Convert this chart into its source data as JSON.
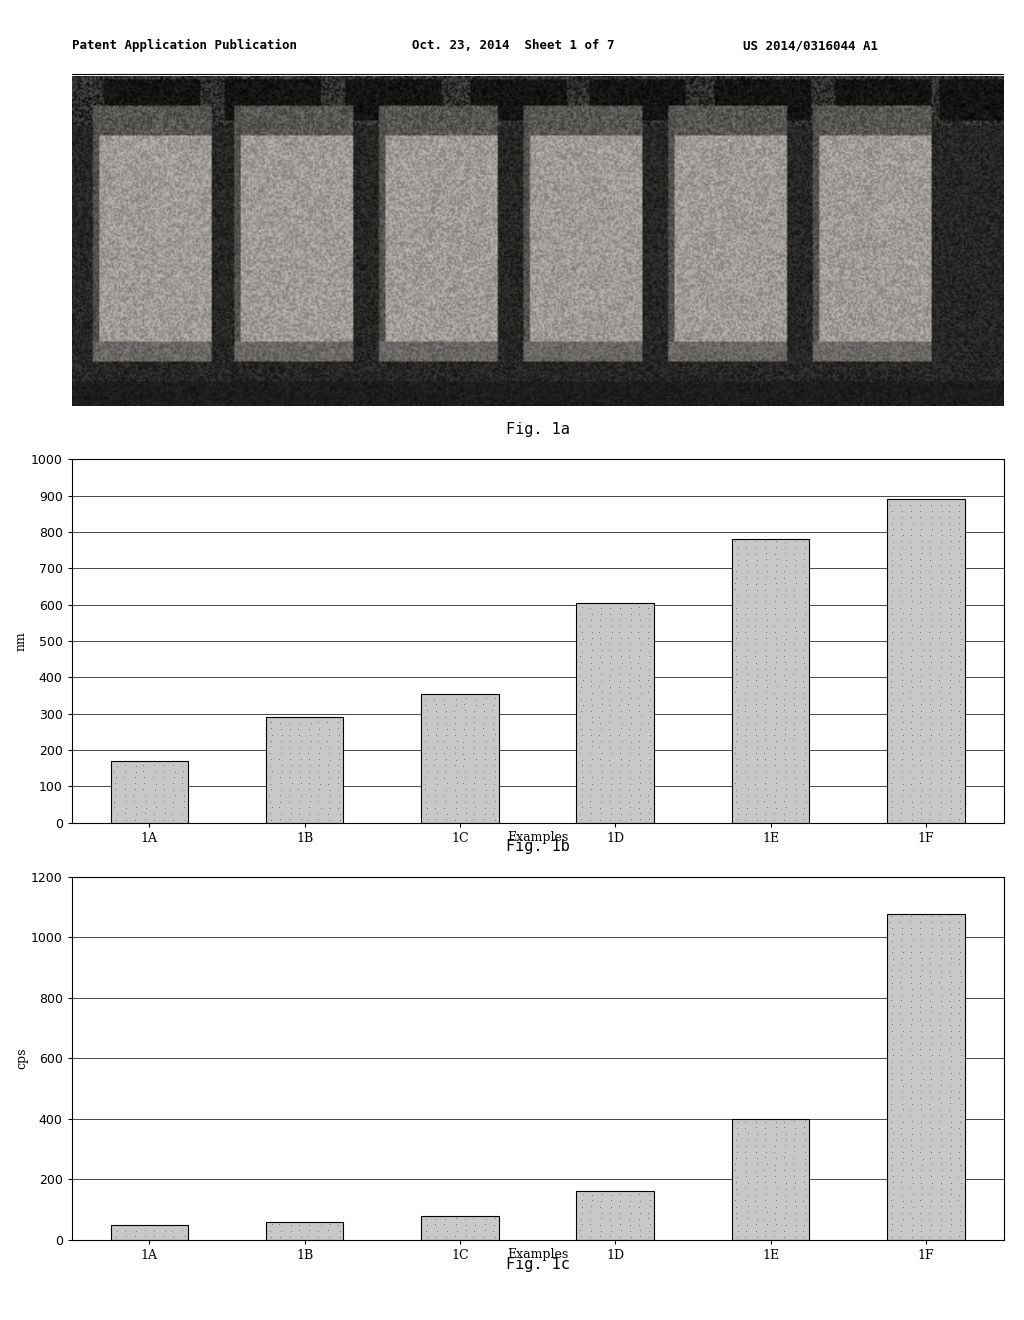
{
  "header_left": "Patent Application Publication",
  "header_mid": "Oct. 23, 2014  Sheet 1 of 7",
  "header_right": "US 2014/0316044 A1",
  "fig1a_label": "Fig. 1a",
  "fig1b_label": "Fig. 1b",
  "fig1c_label": "Fig. 1c",
  "chart1b": {
    "categories": [
      "1A",
      "1B",
      "1C",
      "1D",
      "1E",
      "1F"
    ],
    "values": [
      170,
      290,
      355,
      605,
      780,
      890
    ],
    "ylabel": "nm",
    "xlabel": "Examples",
    "ylim": [
      0,
      1000
    ],
    "yticks": [
      0,
      100,
      200,
      300,
      400,
      500,
      600,
      700,
      800,
      900,
      1000
    ]
  },
  "chart1c": {
    "categories": [
      "1A",
      "1B",
      "1C",
      "1D",
      "1E",
      "1F"
    ],
    "values": [
      50,
      60,
      80,
      160,
      400,
      1075
    ],
    "ylabel": "cps",
    "xlabel": "Examples",
    "ylim": [
      0,
      1200
    ],
    "yticks": [
      0,
      200,
      400,
      600,
      800,
      1000,
      1200
    ]
  },
  "background_color": "#ffffff",
  "bar_face_color": "#c8c8c8",
  "bar_edge_color": "#000000"
}
